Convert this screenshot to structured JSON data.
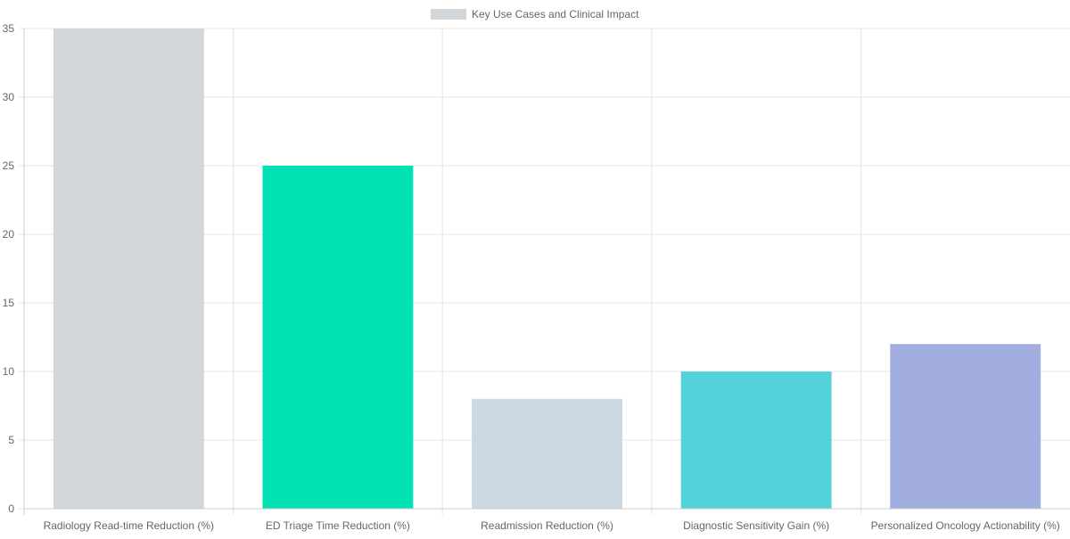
{
  "chart_data": {
    "type": "bar",
    "categories": [
      "Radiology Read-time Reduction (%)",
      "ED Triage Time Reduction (%)",
      "Readmission Reduction (%)",
      "Diagnostic Sensitivity Gain (%)",
      "Personalized Oncology Actionability (%)"
    ],
    "series": [
      {
        "name": "Key Use Cases and Clinical Impact",
        "values": [
          35,
          25,
          8,
          10,
          12
        ],
        "colors": [
          "#d1d7db",
          "#00e1b4",
          "#cdd8e5",
          "#53d3d9",
          "#a3aee0"
        ]
      }
    ],
    "ylim": [
      0,
      35
    ],
    "yticks": [
      "0",
      "5",
      "10",
      "15",
      "20",
      "25",
      "30",
      "35"
    ],
    "legend_position": "top-center",
    "legend_swatch_color": "#d1d7db",
    "grid": true,
    "grid_color": "#e5e5e5",
    "axis_color": "#cccccc",
    "tick_label_color": "#666666"
  }
}
